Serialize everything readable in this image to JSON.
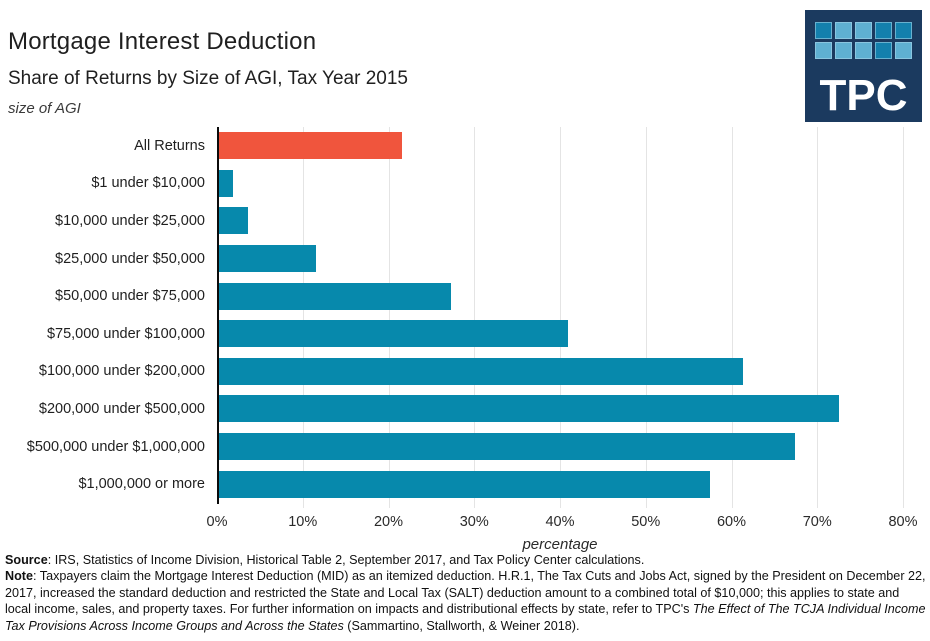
{
  "header": {
    "axis_label_top": "size of AGI"
  },
  "logo": {
    "text": "TPC",
    "bg_color": "#1B3A5F",
    "square_colors": {
      "dark": "#1480AD",
      "light": "#5FB0D2"
    },
    "squares": [
      [
        "dark",
        "light",
        "light",
        "dark",
        "dark"
      ],
      [
        "light",
        "light",
        "light",
        "dark",
        "light"
      ]
    ]
  },
  "chart_data": {
    "type": "bar",
    "orientation": "horizontal",
    "title": "Mortgage Interest Deduction",
    "subtitle": "Share of Returns by Size of AGI, Tax Year 2015",
    "ylabel": "size of AGI",
    "xlabel": "percentage",
    "categories": [
      "All Returns",
      "$1 under $10,000",
      "$10,000 under $25,000",
      "$25,000 under $50,000",
      "$50,000 under $75,000",
      "$75,000 under $100,000",
      "$100,000 under $200,000",
      "$200,000 under $500,000",
      "$500,000 under $1,000,000",
      "$1,000,000 or more"
    ],
    "values": [
      21.6,
      1.9,
      3.6,
      11.5,
      27.3,
      40.9,
      61.3,
      72.5,
      67.4,
      57.5
    ],
    "xlim": [
      0,
      80
    ],
    "xticks": [
      "0%",
      "10%",
      "20%",
      "30%",
      "40%",
      "50%",
      "60%",
      "70%",
      "80%"
    ],
    "grid": true,
    "legend": "none",
    "highlight_color": "#F0553D",
    "bar_color": "#0789AC",
    "grid_color": "#E4E4E4",
    "axis_color": "#0B0B0B"
  },
  "footer": {
    "source_label": "Source",
    "source_text": ": IRS, Statistics of Income Division, Historical Table 2, September 2017, and Tax Policy Center calculations.",
    "note_label": "Note",
    "note_text_1": ": Taxpayers claim the Mortgage Interest Deduction (MID) as an itemized deduction. H.R.1, The Tax Cuts and Jobs Act, signed by the President on December 22, 2017, increased the standard deduction and restricted the State and Local Tax (SALT) deduction amount to a combined total of $10,000; this applies to state and local income, sales, and property taxes. For further information on impacts and distributional effects by state, refer to TPC's ",
    "note_italic": "The Effect of The TCJA Individual Income Tax Provisions Across Income Groups and Across the States",
    "note_text_2": " (Sammartino, Stallworth, & Weiner 2018)."
  }
}
